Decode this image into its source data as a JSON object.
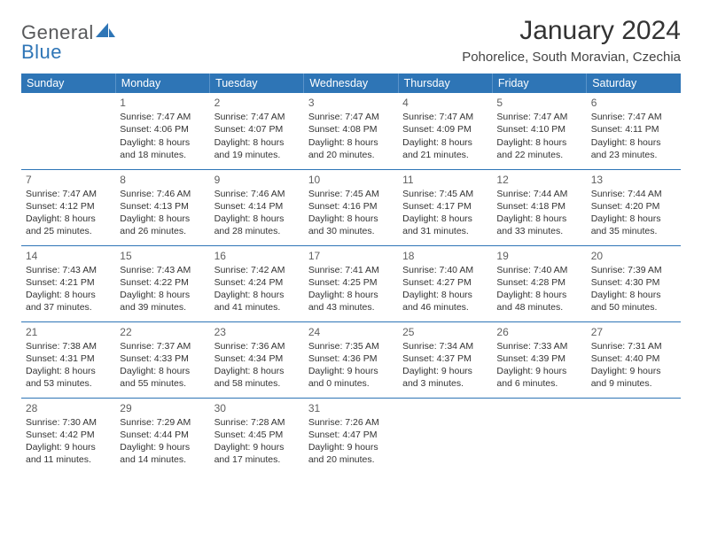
{
  "logo": {
    "text1": "General",
    "text2": "Blue"
  },
  "title": "January 2024",
  "location": "Pohorelice, South Moravian, Czechia",
  "colors": {
    "header_bg": "#2e75b6",
    "header_text": "#ffffff",
    "rule": "#2e75b6",
    "body_text": "#333333",
    "logo_gray": "#58595b",
    "logo_blue": "#2e75b6",
    "background": "#ffffff"
  },
  "typography": {
    "title_fontsize": 30,
    "location_fontsize": 15,
    "dayheader_fontsize": 12.5,
    "daynum_fontsize": 12,
    "cell_fontsize": 10.5
  },
  "day_headers": [
    "Sunday",
    "Monday",
    "Tuesday",
    "Wednesday",
    "Thursday",
    "Friday",
    "Saturday"
  ],
  "weeks": [
    [
      null,
      {
        "n": "1",
        "sunrise": "Sunrise: 7:47 AM",
        "sunset": "Sunset: 4:06 PM",
        "dl1": "Daylight: 8 hours",
        "dl2": "and 18 minutes."
      },
      {
        "n": "2",
        "sunrise": "Sunrise: 7:47 AM",
        "sunset": "Sunset: 4:07 PM",
        "dl1": "Daylight: 8 hours",
        "dl2": "and 19 minutes."
      },
      {
        "n": "3",
        "sunrise": "Sunrise: 7:47 AM",
        "sunset": "Sunset: 4:08 PM",
        "dl1": "Daylight: 8 hours",
        "dl2": "and 20 minutes."
      },
      {
        "n": "4",
        "sunrise": "Sunrise: 7:47 AM",
        "sunset": "Sunset: 4:09 PM",
        "dl1": "Daylight: 8 hours",
        "dl2": "and 21 minutes."
      },
      {
        "n": "5",
        "sunrise": "Sunrise: 7:47 AM",
        "sunset": "Sunset: 4:10 PM",
        "dl1": "Daylight: 8 hours",
        "dl2": "and 22 minutes."
      },
      {
        "n": "6",
        "sunrise": "Sunrise: 7:47 AM",
        "sunset": "Sunset: 4:11 PM",
        "dl1": "Daylight: 8 hours",
        "dl2": "and 23 minutes."
      }
    ],
    [
      {
        "n": "7",
        "sunrise": "Sunrise: 7:47 AM",
        "sunset": "Sunset: 4:12 PM",
        "dl1": "Daylight: 8 hours",
        "dl2": "and 25 minutes."
      },
      {
        "n": "8",
        "sunrise": "Sunrise: 7:46 AM",
        "sunset": "Sunset: 4:13 PM",
        "dl1": "Daylight: 8 hours",
        "dl2": "and 26 minutes."
      },
      {
        "n": "9",
        "sunrise": "Sunrise: 7:46 AM",
        "sunset": "Sunset: 4:14 PM",
        "dl1": "Daylight: 8 hours",
        "dl2": "and 28 minutes."
      },
      {
        "n": "10",
        "sunrise": "Sunrise: 7:45 AM",
        "sunset": "Sunset: 4:16 PM",
        "dl1": "Daylight: 8 hours",
        "dl2": "and 30 minutes."
      },
      {
        "n": "11",
        "sunrise": "Sunrise: 7:45 AM",
        "sunset": "Sunset: 4:17 PM",
        "dl1": "Daylight: 8 hours",
        "dl2": "and 31 minutes."
      },
      {
        "n": "12",
        "sunrise": "Sunrise: 7:44 AM",
        "sunset": "Sunset: 4:18 PM",
        "dl1": "Daylight: 8 hours",
        "dl2": "and 33 minutes."
      },
      {
        "n": "13",
        "sunrise": "Sunrise: 7:44 AM",
        "sunset": "Sunset: 4:20 PM",
        "dl1": "Daylight: 8 hours",
        "dl2": "and 35 minutes."
      }
    ],
    [
      {
        "n": "14",
        "sunrise": "Sunrise: 7:43 AM",
        "sunset": "Sunset: 4:21 PM",
        "dl1": "Daylight: 8 hours",
        "dl2": "and 37 minutes."
      },
      {
        "n": "15",
        "sunrise": "Sunrise: 7:43 AM",
        "sunset": "Sunset: 4:22 PM",
        "dl1": "Daylight: 8 hours",
        "dl2": "and 39 minutes."
      },
      {
        "n": "16",
        "sunrise": "Sunrise: 7:42 AM",
        "sunset": "Sunset: 4:24 PM",
        "dl1": "Daylight: 8 hours",
        "dl2": "and 41 minutes."
      },
      {
        "n": "17",
        "sunrise": "Sunrise: 7:41 AM",
        "sunset": "Sunset: 4:25 PM",
        "dl1": "Daylight: 8 hours",
        "dl2": "and 43 minutes."
      },
      {
        "n": "18",
        "sunrise": "Sunrise: 7:40 AM",
        "sunset": "Sunset: 4:27 PM",
        "dl1": "Daylight: 8 hours",
        "dl2": "and 46 minutes."
      },
      {
        "n": "19",
        "sunrise": "Sunrise: 7:40 AM",
        "sunset": "Sunset: 4:28 PM",
        "dl1": "Daylight: 8 hours",
        "dl2": "and 48 minutes."
      },
      {
        "n": "20",
        "sunrise": "Sunrise: 7:39 AM",
        "sunset": "Sunset: 4:30 PM",
        "dl1": "Daylight: 8 hours",
        "dl2": "and 50 minutes."
      }
    ],
    [
      {
        "n": "21",
        "sunrise": "Sunrise: 7:38 AM",
        "sunset": "Sunset: 4:31 PM",
        "dl1": "Daylight: 8 hours",
        "dl2": "and 53 minutes."
      },
      {
        "n": "22",
        "sunrise": "Sunrise: 7:37 AM",
        "sunset": "Sunset: 4:33 PM",
        "dl1": "Daylight: 8 hours",
        "dl2": "and 55 minutes."
      },
      {
        "n": "23",
        "sunrise": "Sunrise: 7:36 AM",
        "sunset": "Sunset: 4:34 PM",
        "dl1": "Daylight: 8 hours",
        "dl2": "and 58 minutes."
      },
      {
        "n": "24",
        "sunrise": "Sunrise: 7:35 AM",
        "sunset": "Sunset: 4:36 PM",
        "dl1": "Daylight: 9 hours",
        "dl2": "and 0 minutes."
      },
      {
        "n": "25",
        "sunrise": "Sunrise: 7:34 AM",
        "sunset": "Sunset: 4:37 PM",
        "dl1": "Daylight: 9 hours",
        "dl2": "and 3 minutes."
      },
      {
        "n": "26",
        "sunrise": "Sunrise: 7:33 AM",
        "sunset": "Sunset: 4:39 PM",
        "dl1": "Daylight: 9 hours",
        "dl2": "and 6 minutes."
      },
      {
        "n": "27",
        "sunrise": "Sunrise: 7:31 AM",
        "sunset": "Sunset: 4:40 PM",
        "dl1": "Daylight: 9 hours",
        "dl2": "and 9 minutes."
      }
    ],
    [
      {
        "n": "28",
        "sunrise": "Sunrise: 7:30 AM",
        "sunset": "Sunset: 4:42 PM",
        "dl1": "Daylight: 9 hours",
        "dl2": "and 11 minutes."
      },
      {
        "n": "29",
        "sunrise": "Sunrise: 7:29 AM",
        "sunset": "Sunset: 4:44 PM",
        "dl1": "Daylight: 9 hours",
        "dl2": "and 14 minutes."
      },
      {
        "n": "30",
        "sunrise": "Sunrise: 7:28 AM",
        "sunset": "Sunset: 4:45 PM",
        "dl1": "Daylight: 9 hours",
        "dl2": "and 17 minutes."
      },
      {
        "n": "31",
        "sunrise": "Sunrise: 7:26 AM",
        "sunset": "Sunset: 4:47 PM",
        "dl1": "Daylight: 9 hours",
        "dl2": "and 20 minutes."
      },
      null,
      null,
      null
    ]
  ]
}
